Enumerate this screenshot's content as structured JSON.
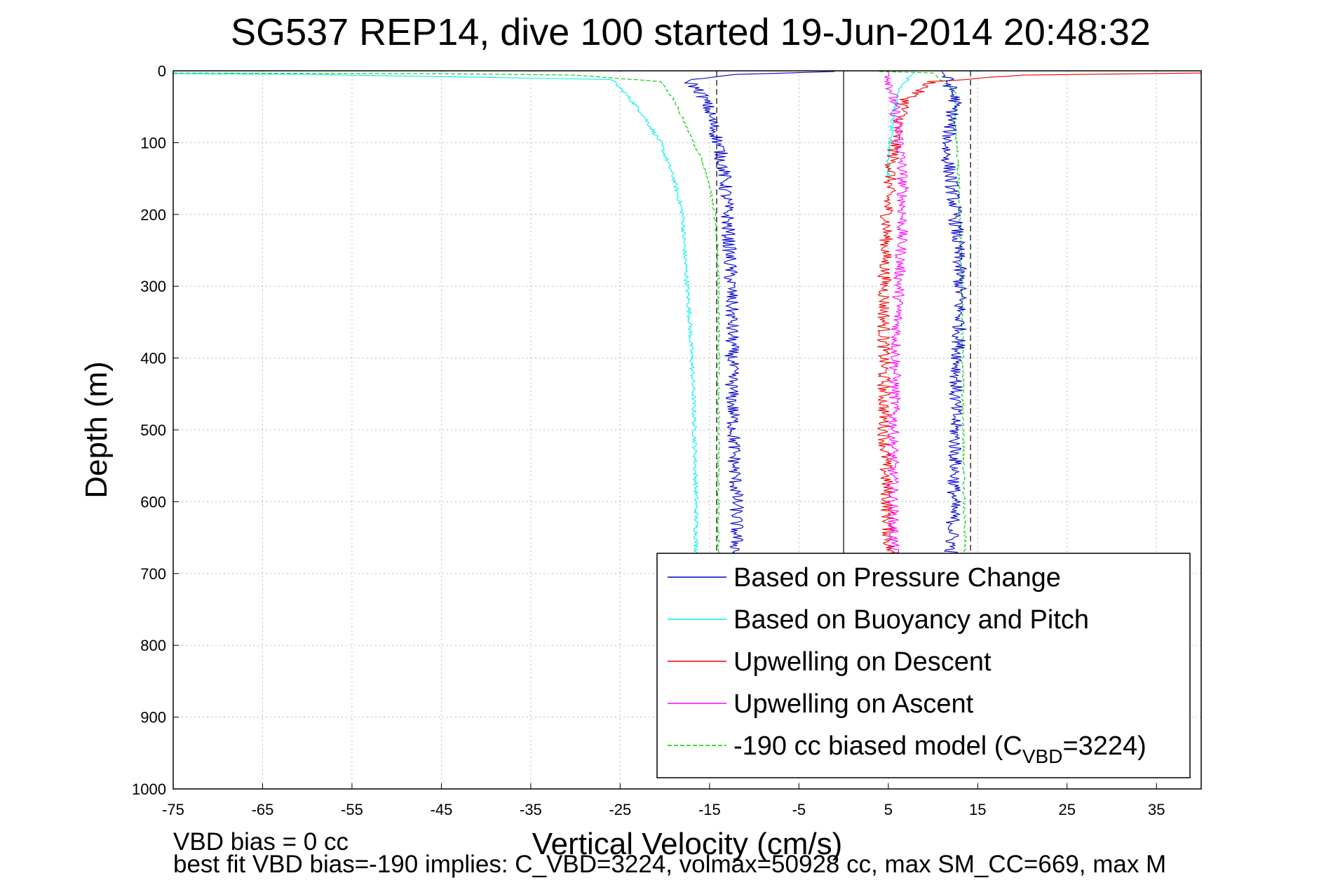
{
  "chart_data": {
    "type": "line",
    "title": "SG537 REP14, dive 100 started 19-Jun-2014 20:48:32",
    "xlabel": "Vertical Velocity (cm/s)",
    "ylabel": "Depth (m)",
    "xlim": [
      -75,
      40
    ],
    "ylim": [
      0,
      1000
    ],
    "y_reversed": true,
    "grid": true,
    "legend_position": "lower-right",
    "x_ticks": [
      -75,
      -65,
      -55,
      -45,
      -35,
      -25,
      -15,
      -5,
      5,
      15,
      25,
      35
    ],
    "y_ticks": [
      0,
      100,
      200,
      300,
      400,
      500,
      600,
      700,
      800,
      900,
      1000
    ],
    "reference_lines": [
      {
        "x": -14.2,
        "style": "dashed",
        "color": "#000000"
      },
      {
        "x": 0,
        "style": "solid",
        "color": "#000000"
      },
      {
        "x": 14.2,
        "style": "dashed",
        "color": "#000000"
      }
    ],
    "series": [
      {
        "name": "Based on Pressure Change",
        "color": "#0000cc",
        "style": "solid",
        "x": [
          -1,
          -12,
          -17.5,
          -16,
          -15.2,
          -14.5,
          -13.8,
          -13.3,
          -13,
          -12.8,
          -12.6,
          -12.5,
          -12.5,
          -12.5,
          -12.3,
          -12.2,
          -12,
          -12
        ],
        "y": [
          1,
          5,
          12,
          30,
          50,
          80,
          110,
          150,
          200,
          250,
          300,
          350,
          400,
          450,
          500,
          550,
          600,
          680
        ],
        "x2": [
          11,
          11.5,
          12.5,
          12,
          11.5,
          12,
          12.5,
          12.8,
          13,
          13,
          12.8,
          12.5,
          12.5,
          12.5,
          12.3,
          12.2,
          12,
          12
        ],
        "y2": [
          1,
          10,
          40,
          70,
          110,
          150,
          200,
          250,
          300,
          350,
          400,
          450,
          500,
          550,
          600,
          640,
          680,
          680
        ]
      },
      {
        "name": "Based on Buoyancy and Pitch",
        "color": "#00eeee",
        "style": "solid",
        "x": [
          -75,
          -60,
          -26,
          -24.5,
          -22.5,
          -20.5,
          -19,
          -18,
          -17.8,
          -17.5,
          -17.2,
          -17,
          -16.8,
          -16.7,
          -16.6,
          -16.5,
          -16.5,
          -16.5
        ],
        "y": [
          4,
          5,
          12,
          30,
          60,
          100,
          150,
          200,
          250,
          300,
          350,
          400,
          450,
          500,
          550,
          600,
          640,
          680
        ],
        "x2": [
          8,
          6.5,
          5.5,
          5.2,
          5,
          5
        ],
        "y2": [
          1,
          20,
          60,
          100,
          130,
          150
        ]
      },
      {
        "name": "Upwelling on Descent",
        "color": "#ee0000",
        "style": "solid",
        "x": [
          40,
          20,
          10,
          7,
          6,
          5.5,
          5,
          4.8,
          4.6,
          4.5,
          4.5,
          4.5,
          4.6,
          4.8,
          5,
          5.2
        ],
        "y": [
          3,
          6,
          15,
          40,
          80,
          120,
          170,
          220,
          280,
          340,
          400,
          460,
          520,
          580,
          640,
          680
        ]
      },
      {
        "name": "Upwelling on Ascent",
        "color": "#ff00ff",
        "style": "solid",
        "x": [
          5,
          5.3,
          5.8,
          6.3,
          6.6,
          6.6,
          6.4,
          6.2,
          6,
          5.8,
          5.7,
          5.6,
          5.5,
          5.5,
          5.6
        ],
        "y": [
          2,
          20,
          60,
          100,
          150,
          200,
          250,
          300,
          350,
          400,
          450,
          500,
          550,
          600,
          680
        ]
      },
      {
        "name": "-190 cc biased model (C_VBD=3224)",
        "color": "#00cc00",
        "style": "dashed",
        "x": [
          -75,
          -45,
          -30,
          -20.5,
          -19,
          -17.5,
          -16,
          -15,
          -14.4,
          -14.1,
          -14,
          -14,
          -14,
          -14,
          -14,
          -14
        ],
        "y": [
          3,
          4,
          6,
          15,
          40,
          80,
          120,
          160,
          200,
          250,
          300,
          400,
          500,
          600,
          660,
          680
        ],
        "x2": [
          4,
          10,
          12.5,
          12.5,
          12.8,
          13,
          13.2,
          13.3,
          13.4,
          13.5,
          13.6,
          13.6
        ],
        "y2": [
          1,
          3,
          30,
          80,
          130,
          200,
          300,
          400,
          500,
          600,
          650,
          680
        ]
      }
    ],
    "footer_lines": [
      "VBD bias = 0 cc",
      "best fit VBD bias=-190 implies: C_VBD=3224, volmax=50928 cc, max SM_CC=669, max M"
    ]
  }
}
